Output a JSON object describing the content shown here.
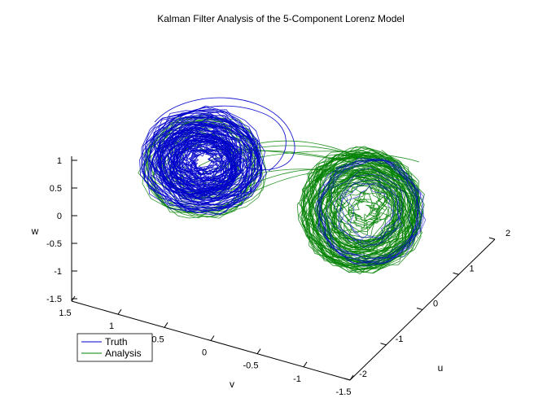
{
  "chart_data": {
    "type": "line",
    "projection": "3d",
    "title": "Kalman Filter Analysis of the 5-Component Lorenz Model",
    "xlabel": "v",
    "ylabel": "u",
    "zlabel": "w",
    "v_ticks": [
      "1.5",
      "1",
      "0.5",
      "0",
      "-0.5",
      "-1",
      "-1.5"
    ],
    "u_ticks": [
      "-2",
      "-1",
      "0",
      "1",
      "2"
    ],
    "w_ticks": [
      "1",
      "0.5",
      "0",
      "-0.5",
      "-1",
      "-1.5"
    ],
    "vlim": [
      -1.5,
      1.5
    ],
    "ulim": [
      -2,
      2
    ],
    "wlim": [
      -1.5,
      1
    ],
    "grid": false,
    "legend_position": "bottom-left",
    "series": [
      {
        "name": "Truth",
        "color": "#0000cc"
      },
      {
        "name": "Analysis",
        "color": "#008000"
      }
    ]
  }
}
